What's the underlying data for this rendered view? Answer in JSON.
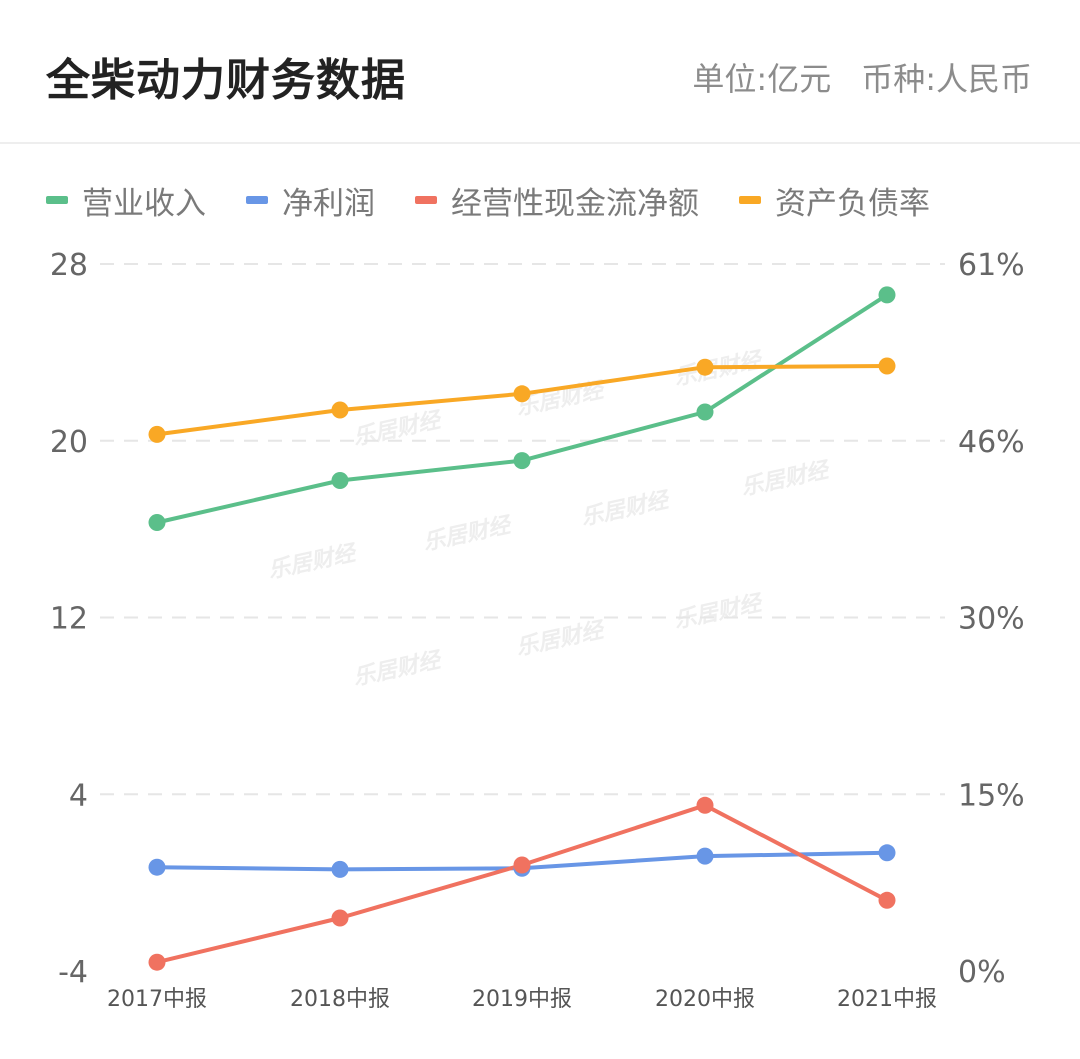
{
  "header": {
    "title": "全柴动力财务数据",
    "unit": "单位:亿元",
    "currency": "币种:人民币"
  },
  "watermark": "乐居财经",
  "chart_data": {
    "type": "line",
    "categories": [
      "2017中报",
      "2018中报",
      "2019中报",
      "2020中报",
      "2021中报"
    ],
    "left_axis": {
      "ylim": [
        -4,
        28
      ],
      "ticks": [
        "28",
        "20",
        "12",
        "4",
        "-4"
      ]
    },
    "right_axis": {
      "ylim": [
        0,
        61
      ],
      "ticks": [
        "61%",
        "46%",
        "30%",
        "15%",
        "0%"
      ]
    },
    "grid": true,
    "legend": "top",
    "series": [
      {
        "name": "营业收入",
        "color": "#5bbf8a",
        "axis": "left",
        "values": [
          16.3,
          18.2,
          19.1,
          21.3,
          26.6
        ]
      },
      {
        "name": "净利润",
        "color": "#6896e6",
        "axis": "left",
        "values": [
          0.7,
          0.6,
          0.65,
          1.2,
          1.35
        ]
      },
      {
        "name": "经营性现金流净额",
        "color": "#f07260",
        "axis": "left",
        "values": [
          -3.6,
          -1.6,
          0.8,
          3.5,
          -0.8
        ]
      },
      {
        "name": "资产负债率",
        "color": "#f9a825",
        "axis": "right",
        "values": [
          46.3,
          48.4,
          49.8,
          52.1,
          52.2
        ]
      }
    ]
  }
}
